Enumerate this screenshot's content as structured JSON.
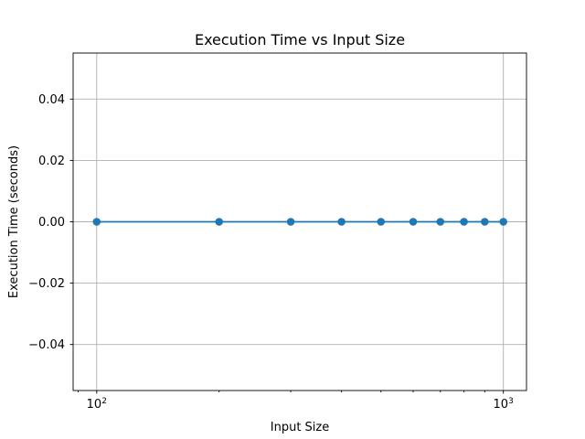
{
  "chart_data": {
    "type": "line",
    "title": "Execution Time vs Input Size",
    "xlabel": "Input Size",
    "ylabel": "Execution Time (seconds)",
    "xscale": "log",
    "xlim": [
      87.5,
      1140
    ],
    "ylim": [
      -0.055,
      0.055
    ],
    "grid": true,
    "x_ticks": [
      {
        "value": 100,
        "base": "10",
        "exp": "2"
      },
      {
        "value": 1000,
        "base": "10",
        "exp": "3"
      }
    ],
    "y_ticks": [
      {
        "value": -0.04,
        "label": "−0.04"
      },
      {
        "value": -0.02,
        "label": "−0.02"
      },
      {
        "value": 0.0,
        "label": "0.00"
      },
      {
        "value": 0.02,
        "label": "0.02"
      },
      {
        "value": 0.04,
        "label": "0.04"
      }
    ],
    "series": [
      {
        "color": "#1f77b4",
        "marker": "circle",
        "x": [
          100,
          200,
          300,
          400,
          500,
          600,
          700,
          800,
          900,
          1000
        ],
        "y": [
          0,
          0,
          0,
          0,
          0,
          0,
          0,
          0,
          0,
          0
        ]
      }
    ]
  }
}
